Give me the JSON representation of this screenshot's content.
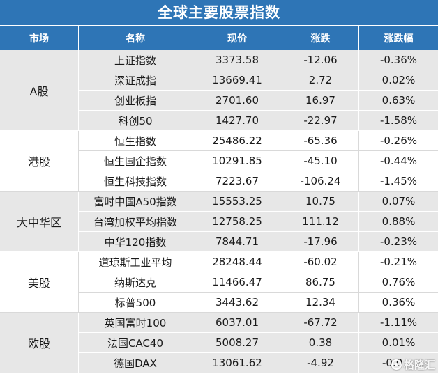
{
  "chart_data": {
    "type": "table",
    "title": "全球主要股票指数",
    "columns": [
      "市场",
      "名称",
      "现价",
      "涨跌",
      "涨跌幅"
    ],
    "groups": [
      {
        "market": "A股",
        "rows": [
          {
            "name": "上证指数",
            "price": "3373.58",
            "change": "-12.06",
            "change_pct": "-0.36%"
          },
          {
            "name": "深证成指",
            "price": "13669.41",
            "change": "2.72",
            "change_pct": "0.02%"
          },
          {
            "name": "创业板指",
            "price": "2701.60",
            "change": "16.97",
            "change_pct": "0.63%"
          },
          {
            "name": "科创50",
            "price": "1427.70",
            "change": "-22.97",
            "change_pct": "-1.58%"
          }
        ]
      },
      {
        "market": "港股",
        "rows": [
          {
            "name": "恒生指数",
            "price": "25486.22",
            "change": "-65.36",
            "change_pct": "-0.26%"
          },
          {
            "name": "恒生国企指数",
            "price": "10291.85",
            "change": "-45.10",
            "change_pct": "-0.44%"
          },
          {
            "name": "恒生科技指数",
            "price": "7223.67",
            "change": "-106.24",
            "change_pct": "-1.45%"
          }
        ]
      },
      {
        "market": "大中华区",
        "rows": [
          {
            "name": "富时中国A50指数",
            "price": "15553.25",
            "change": "10.75",
            "change_pct": "0.07%"
          },
          {
            "name": "台湾加权平均指数",
            "price": "12758.25",
            "change": "111.12",
            "change_pct": "0.88%"
          },
          {
            "name": "中华120指数",
            "price": "7844.71",
            "change": "-17.96",
            "change_pct": "-0.23%"
          }
        ]
      },
      {
        "market": "美股",
        "rows": [
          {
            "name": "道琼斯工业平均",
            "price": "28248.44",
            "change": "-60.02",
            "change_pct": "-0.21%"
          },
          {
            "name": "纳斯达克",
            "price": "11466.47",
            "change": "86.75",
            "change_pct": "0.76%"
          },
          {
            "name": "标普500",
            "price": "3443.62",
            "change": "12.34",
            "change_pct": "0.36%"
          }
        ]
      },
      {
        "market": "欧股",
        "rows": [
          {
            "name": "英国富时100",
            "price": "6037.01",
            "change": "-67.72",
            "change_pct": "-1.11%"
          },
          {
            "name": "法国CAC40",
            "price": "5008.27",
            "change": "0.38",
            "change_pct": "0.01%"
          },
          {
            "name": "德国DAX",
            "price": "13061.62",
            "change": "-4.92",
            "change_pct": "-0.0"
          }
        ]
      }
    ]
  },
  "watermark": {
    "text": "格隆汇",
    "icon": "gelonghui-logo-icon"
  },
  "colors": {
    "header_blue": "#2e75b6",
    "gray_band": "#e7e7e7",
    "white_band": "#ffffff",
    "text": "#1a1a1a",
    "title_text": "#ffffff"
  }
}
